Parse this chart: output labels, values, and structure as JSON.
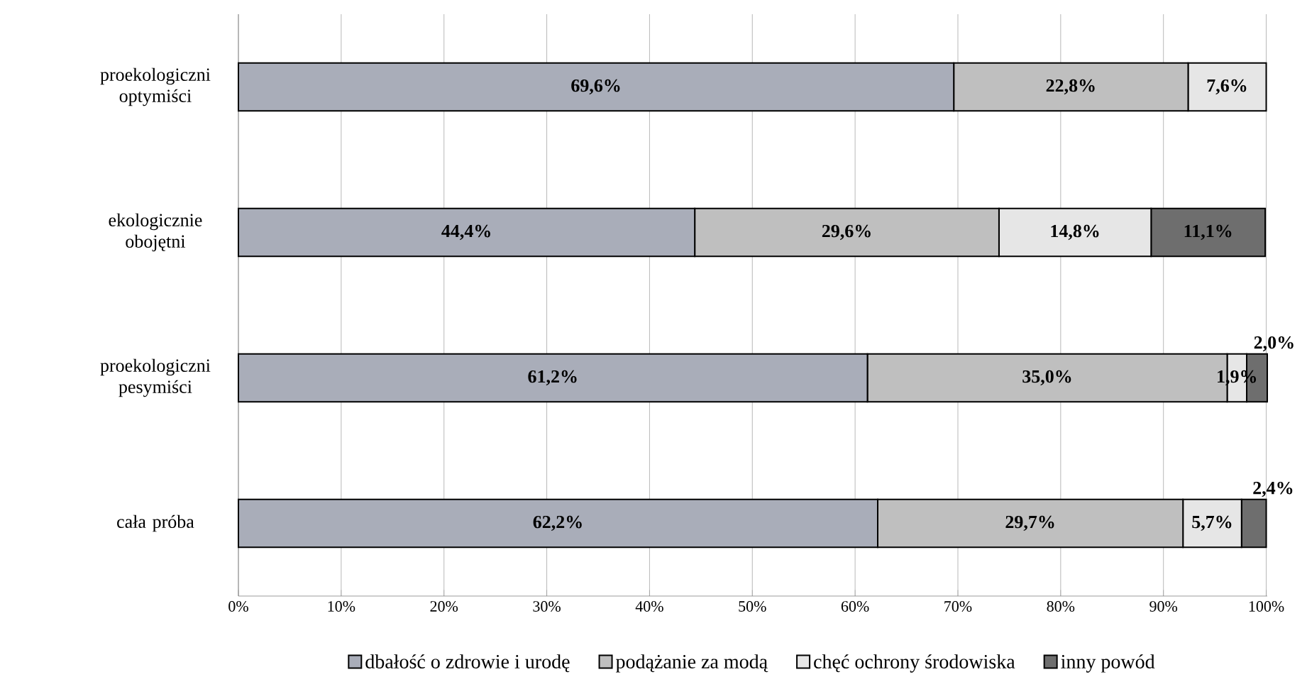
{
  "chart_data": {
    "type": "bar",
    "orientation": "horizontal",
    "stacked": true,
    "categories": [
      "proekologiczni optymiści",
      "ekologicznie obojętni",
      "proekologiczni pesymiści",
      "cała próba"
    ],
    "series": [
      {
        "name": "dbałość o zdrowie i urodę",
        "color": "#a9adb9",
        "values": [
          69.6,
          44.4,
          61.2,
          62.2
        ],
        "value_labels": [
          "69,6%",
          "44,4%",
          "61,2%",
          "62,2%"
        ]
      },
      {
        "name": "podążanie za modą",
        "color": "#bfbfbf",
        "values": [
          22.8,
          29.6,
          35.0,
          29.7
        ],
        "value_labels": [
          "22,8%",
          "29,6%",
          "35,0%",
          "29,7%"
        ]
      },
      {
        "name": "chęć ochrony środowiska",
        "color": "#e6e6e6",
        "values": [
          7.6,
          14.8,
          1.9,
          5.7
        ],
        "value_labels": [
          "7,6%",
          "14,8%",
          "1,9%",
          "5,7%"
        ]
      },
      {
        "name": "inny powód",
        "color": "#6e6e6e",
        "values": [
          0,
          11.1,
          2.0,
          2.4
        ],
        "value_labels": [
          null,
          "11,1%",
          "2,0%",
          "2,4%"
        ]
      }
    ],
    "xlim": [
      0,
      100.1
    ],
    "xticks": [
      {
        "value": 0,
        "label": "0%"
      },
      {
        "value": 10,
        "label": "10%"
      },
      {
        "value": 20,
        "label": "20%"
      },
      {
        "value": 30,
        "label": "30%"
      },
      {
        "value": 40,
        "label": "40%"
      },
      {
        "value": 50,
        "label": "50%"
      },
      {
        "value": 60,
        "label": "60%"
      },
      {
        "value": 70,
        "label": "70%"
      },
      {
        "value": 80,
        "label": "80%"
      },
      {
        "value": 90,
        "label": "90%"
      },
      {
        "value": 100,
        "label": "100%"
      }
    ],
    "grid": "x",
    "legend": "bottom"
  }
}
